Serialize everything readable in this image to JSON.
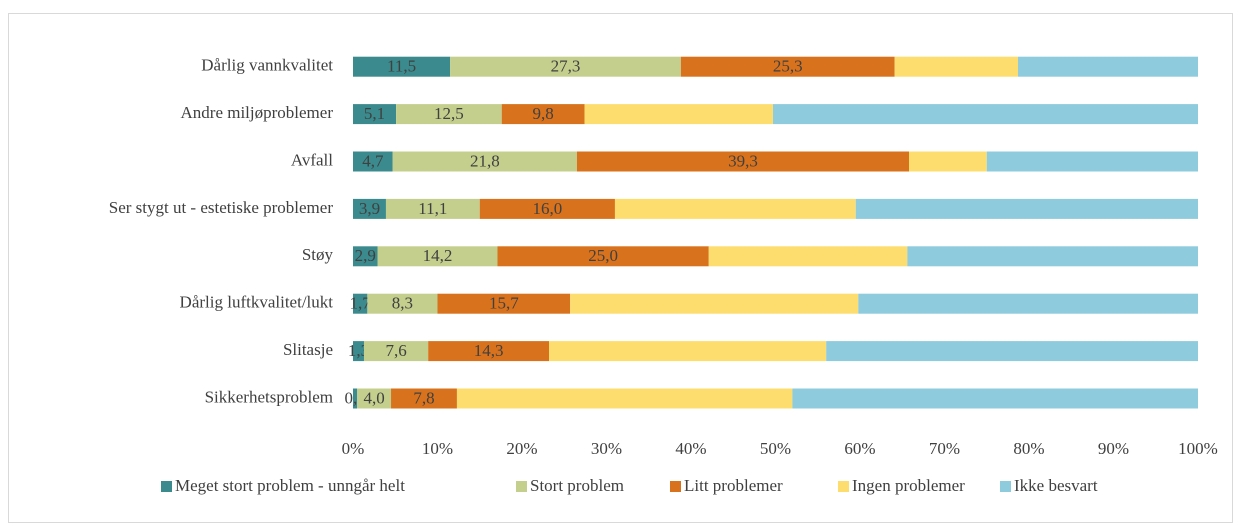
{
  "chart_data": {
    "type": "stacked-bar-horizontal",
    "categories": [
      "Dårlig vannkvalitet",
      "Andre miljøproblemer",
      "Avfall",
      "Ser stygt ut - estetiske problemer",
      "Støy",
      "Dårlig luftkvalitet/lukt",
      "Slitasje",
      "Sikkerhetsproblem"
    ],
    "series": [
      {
        "name": "Meget stort problem - unngår helt",
        "color": "#3b8a8d",
        "values": [
          11.5,
          5.1,
          4.7,
          3.9,
          2.9,
          1.7,
          1.3,
          0.5
        ],
        "value_labels": [
          "11,5",
          "5,1",
          "4,7",
          "3,9",
          "2,9",
          "1,7",
          "1,3",
          "0,5"
        ]
      },
      {
        "name": "Stort problem",
        "color": "#c4cf8e",
        "values": [
          27.3,
          12.5,
          21.8,
          11.1,
          14.2,
          8.3,
          7.6,
          4.0
        ],
        "value_labels": [
          "27,3",
          "12,5",
          "21,8",
          "11,1",
          "14,2",
          "8,3",
          "7,6",
          "4,0"
        ]
      },
      {
        "name": "Litt problemer",
        "color": "#d9721d",
        "values": [
          25.3,
          9.8,
          39.3,
          16.0,
          25.0,
          15.7,
          14.3,
          7.8
        ],
        "value_labels": [
          "25,3",
          "9,8",
          "39,3",
          "16,0",
          "25,0",
          "15,7",
          "14,3",
          "7,8"
        ]
      },
      {
        "name": "Ingen problemer",
        "color": "#fedd6f",
        "values": [
          14.6,
          22.3,
          9.2,
          28.5,
          23.5,
          34.1,
          32.8,
          39.7
        ]
      },
      {
        "name": "Ikke besvart",
        "color": "#8ecbdd",
        "values": [
          21.3,
          50.3,
          25.0,
          40.5,
          34.4,
          40.2,
          44.0,
          48.0
        ]
      }
    ],
    "xlim": [
      0,
      100
    ],
    "xticks": [
      {
        "value": 0,
        "label": "0%"
      },
      {
        "value": 10,
        "label": "10%"
      },
      {
        "value": 20,
        "label": "20%"
      },
      {
        "value": 30,
        "label": "30%"
      },
      {
        "value": 40,
        "label": "40%"
      },
      {
        "value": 50,
        "label": "50%"
      },
      {
        "value": 60,
        "label": "60%"
      },
      {
        "value": 70,
        "label": "70%"
      },
      {
        "value": 80,
        "label": "80%"
      },
      {
        "value": 90,
        "label": "90%"
      },
      {
        "value": 100,
        "label": "100%"
      }
    ],
    "legend": "bottom"
  }
}
